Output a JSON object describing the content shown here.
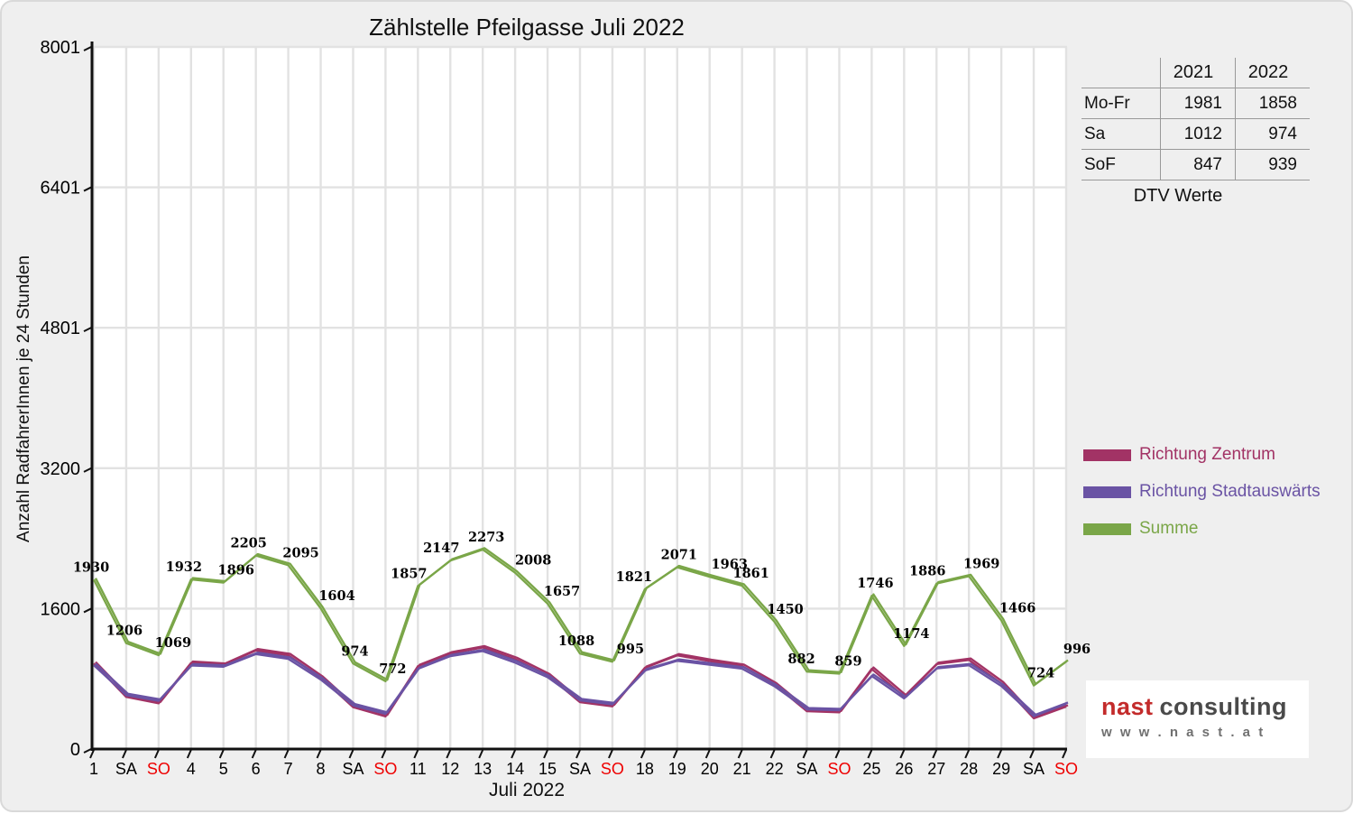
{
  "title": "Zählstelle Pfeilgasse Juli 2022",
  "summary_table": {
    "col_headers": [
      "2021",
      "2022"
    ],
    "rows": [
      {
        "label": "Mo-Fr",
        "y2021": "1981",
        "y2022": "1858"
      },
      {
        "label": "Sa",
        "y2021": "1012",
        "y2022": "974"
      },
      {
        "label": "SoF",
        "y2021": "847",
        "y2022": "939"
      }
    ],
    "caption": "DTV Werte"
  },
  "legend": [
    {
      "label": "Richtung Zentrum",
      "color": "#a23365"
    },
    {
      "label": "Richtung Stadtauswärts",
      "color": "#6a53a4"
    },
    {
      "label": "Summe",
      "color": "#7aa648"
    }
  ],
  "logo": {
    "brand_red": "nast",
    "brand_dark": "consulting",
    "url_text": "w w w . n a s t . a t"
  },
  "chart_data": {
    "type": "line",
    "title": "Zählstelle Pfeilgasse Juli 2022",
    "xlabel": "Juli 2022",
    "ylabel": "Anzahl RadfahrerInnen je 24 Stunden",
    "ylim": [
      0,
      8001
    ],
    "grid": true,
    "legend_position": "right",
    "y_ticks": [
      0,
      1600,
      3200,
      4801,
      6401,
      8001
    ],
    "sunday_color": "#ee0000",
    "x_tick_labels": [
      "1",
      "SA",
      "SO",
      "4",
      "5",
      "6",
      "7",
      "8",
      "SA",
      "SO",
      "11",
      "12",
      "13",
      "14",
      "15",
      "SA",
      "SO",
      "18",
      "19",
      "20",
      "21",
      "22",
      "SA",
      "SO",
      "25",
      "26",
      "27",
      "28",
      "29",
      "SA",
      "SO"
    ],
    "series": [
      {
        "name": "Richtung Zentrum",
        "color": "#a23365",
        "estimated": true,
        "values": [
          975,
          593,
          520,
          981,
          958,
          1123,
          1068,
          812,
          477,
          371,
          944,
          1089,
          1157,
          1024,
          839,
          534,
          486,
          926,
          1066,
          1002,
          946,
          735,
          431,
          418,
          913,
          597,
          968,
          1015,
          748,
          350,
          483
        ]
      },
      {
        "name": "Richtung Stadtauswärts",
        "color": "#6a53a4",
        "estimated": true,
        "values": [
          955,
          613,
          549,
          951,
          938,
          1082,
          1027,
          792,
          497,
          401,
          913,
          1058,
          1116,
          984,
          818,
          554,
          509,
          895,
          1005,
          961,
          915,
          715,
          451,
          441,
          833,
          577,
          918,
          954,
          718,
          374,
          513
        ]
      },
      {
        "name": "Summe",
        "color": "#7aa648",
        "data_labels": true,
        "values": [
          1930,
          1206,
          1069,
          1932,
          1896,
          2205,
          2095,
          1604,
          974,
          772,
          1857,
          2147,
          2273,
          2008,
          1657,
          1088,
          995,
          1821,
          2071,
          1963,
          1861,
          1450,
          882,
          859,
          1746,
          1174,
          1886,
          1969,
          1466,
          724,
          996
        ]
      }
    ]
  }
}
